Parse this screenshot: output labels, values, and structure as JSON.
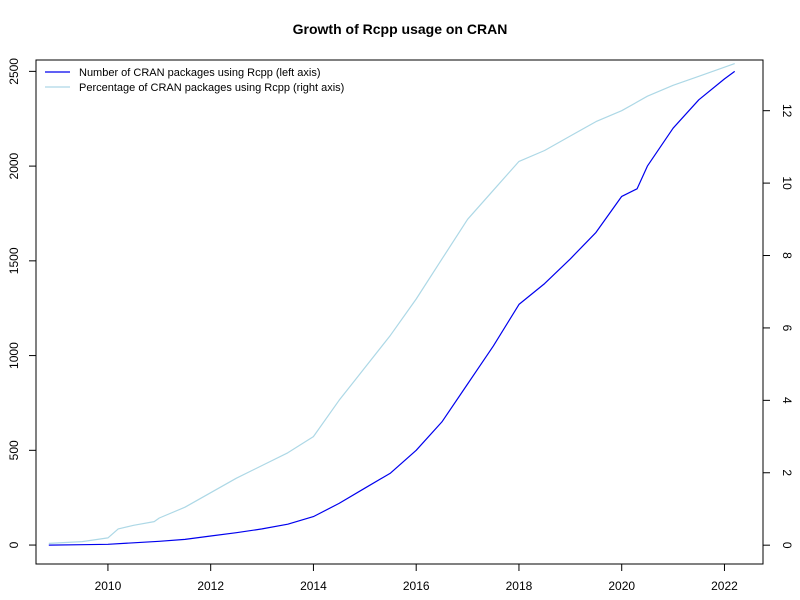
{
  "chart_data": {
    "type": "line",
    "title": "Growth of Rcpp usage on CRAN",
    "xlabel": "",
    "ylabel": "",
    "ylabel_right": "",
    "xlim": [
      2008.6,
      2022.75
    ],
    "ylim": [
      -100,
      2560
    ],
    "ylim_right": [
      -0.52,
      13.4
    ],
    "x_ticks": [
      2010,
      2012,
      2014,
      2016,
      2018,
      2020,
      2022
    ],
    "y_ticks": [
      0,
      500,
      1000,
      1500,
      2000,
      2500
    ],
    "y_ticks_right": [
      0,
      2,
      4,
      6,
      8,
      10,
      12
    ],
    "grid": false,
    "legend_position": "top-left",
    "series": [
      {
        "name": "Number of CRAN packages using Rcpp (left axis)",
        "axis": "left",
        "color": "#0000ee",
        "points": [
          [
            2008.85,
            0
          ],
          [
            2009.5,
            2
          ],
          [
            2010.0,
            4
          ],
          [
            2010.5,
            12
          ],
          [
            2011.0,
            20
          ],
          [
            2011.5,
            30
          ],
          [
            2012.0,
            48
          ],
          [
            2012.5,
            65
          ],
          [
            2013.0,
            85
          ],
          [
            2013.5,
            110
          ],
          [
            2014.0,
            150
          ],
          [
            2014.5,
            220
          ],
          [
            2015.0,
            300
          ],
          [
            2015.5,
            380
          ],
          [
            2016.0,
            500
          ],
          [
            2016.5,
            650
          ],
          [
            2017.0,
            850
          ],
          [
            2017.5,
            1050
          ],
          [
            2018.0,
            1270
          ],
          [
            2018.5,
            1380
          ],
          [
            2019.0,
            1510
          ],
          [
            2019.5,
            1650
          ],
          [
            2020.0,
            1840
          ],
          [
            2020.3,
            1880
          ],
          [
            2020.5,
            2000
          ],
          [
            2021.0,
            2200
          ],
          [
            2021.5,
            2350
          ],
          [
            2022.0,
            2460
          ],
          [
            2022.2,
            2500
          ]
        ]
      },
      {
        "name": "Percentage of CRAN packages using Rcpp (right axis)",
        "axis": "right",
        "color": "#add8e6",
        "points": [
          [
            2008.85,
            0.05
          ],
          [
            2009.5,
            0.1
          ],
          [
            2010.0,
            0.2
          ],
          [
            2010.2,
            0.45
          ],
          [
            2010.5,
            0.55
          ],
          [
            2010.9,
            0.65
          ],
          [
            2011.0,
            0.75
          ],
          [
            2011.5,
            1.05
          ],
          [
            2012.0,
            1.45
          ],
          [
            2012.5,
            1.85
          ],
          [
            2013.0,
            2.2
          ],
          [
            2013.5,
            2.55
          ],
          [
            2014.0,
            3.0
          ],
          [
            2014.5,
            4.0
          ],
          [
            2015.0,
            4.9
          ],
          [
            2015.5,
            5.8
          ],
          [
            2016.0,
            6.8
          ],
          [
            2016.5,
            7.9
          ],
          [
            2017.0,
            9.0
          ],
          [
            2017.5,
            9.8
          ],
          [
            2018.0,
            10.6
          ],
          [
            2018.5,
            10.9
          ],
          [
            2019.0,
            11.3
          ],
          [
            2019.5,
            11.7
          ],
          [
            2020.0,
            12.0
          ],
          [
            2020.5,
            12.4
          ],
          [
            2021.0,
            12.7
          ],
          [
            2021.5,
            12.95
          ],
          [
            2022.0,
            13.2
          ],
          [
            2022.2,
            13.3
          ]
        ]
      }
    ]
  }
}
